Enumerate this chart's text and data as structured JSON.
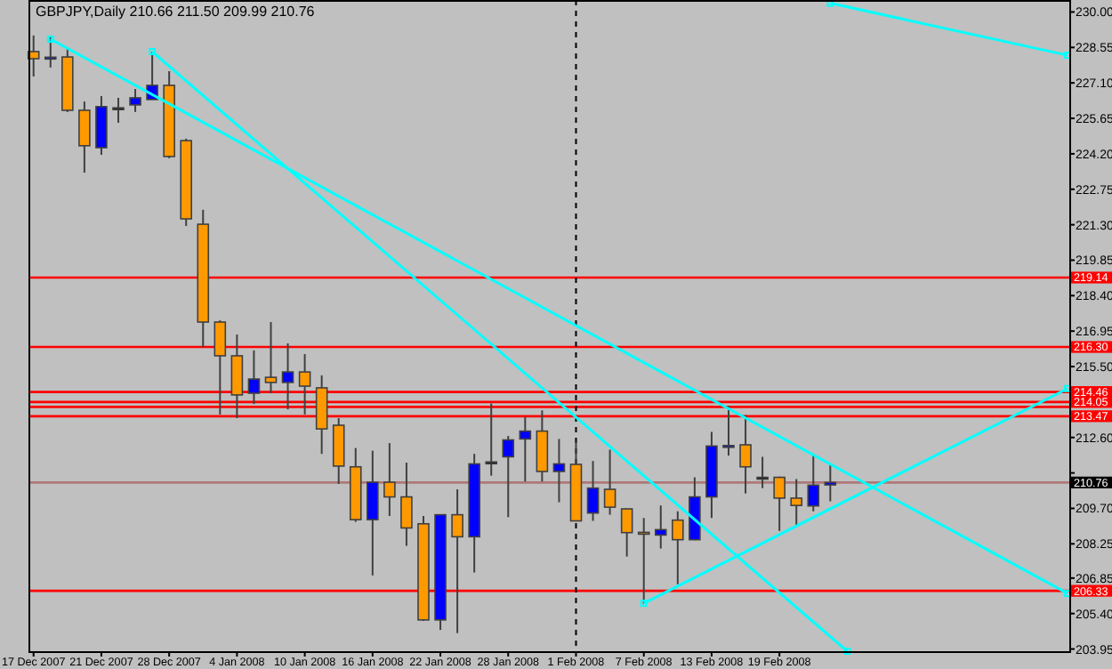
{
  "chart_data": {
    "type": "candlestick",
    "title": "GBPJPY,Daily  210.66 211.50 209.99 210.76",
    "categories": [
      "17 Dec 2007",
      null,
      null,
      null,
      "21 Dec 2007",
      null,
      null,
      null,
      "28 Dec 2007",
      null,
      null,
      null,
      "4 Jan 2008",
      null,
      null,
      null,
      "10 Jan 2008",
      null,
      null,
      null,
      "16 Jan 2008",
      null,
      null,
      null,
      "22 Jan 2008",
      null,
      null,
      null,
      "28 Jan 2008",
      null,
      null,
      null,
      "1 Feb 2008",
      null,
      null,
      null,
      "7 Feb 2008",
      null,
      null,
      null,
      "13 Feb 2008",
      null,
      null,
      null,
      "19 Feb 2008",
      null,
      null,
      null,
      null,
      null,
      null,
      null,
      null,
      null,
      null,
      null,
      null,
      null,
      null,
      null,
      null,
      null
    ],
    "ohlc": [
      [
        228.38,
        229.04,
        227.36,
        228.09
      ],
      [
        228.12,
        228.96,
        227.73,
        228.15
      ],
      [
        228.16,
        228.53,
        225.91,
        225.98
      ],
      [
        225.98,
        226.34,
        223.43,
        224.53
      ],
      [
        224.45,
        226.56,
        224.16,
        226.13
      ],
      [
        226.05,
        226.49,
        225.47,
        226.08
      ],
      [
        226.2,
        226.85,
        225.91,
        226.49
      ],
      [
        226.42,
        228.38,
        226.42,
        227.0
      ],
      [
        227.0,
        227.58,
        224.02,
        224.09
      ],
      [
        224.74,
        224.82,
        221.25,
        221.54
      ],
      [
        221.32,
        221.91,
        216.3,
        217.32
      ],
      [
        217.32,
        217.39,
        213.54,
        215.94
      ],
      [
        215.94,
        216.81,
        213.39,
        214.34
      ],
      [
        214.41,
        216.16,
        213.97,
        214.99
      ],
      [
        215.06,
        217.32,
        214.41,
        214.85
      ],
      [
        214.85,
        216.45,
        213.75,
        215.28
      ],
      [
        215.28,
        216.01,
        213.54,
        214.7
      ],
      [
        214.63,
        215.14,
        211.93,
        212.95
      ],
      [
        213.1,
        213.39,
        210.7,
        211.43
      ],
      [
        211.4,
        212.17,
        209.15,
        209.24
      ],
      [
        209.24,
        212.06,
        206.96,
        210.77
      ],
      [
        210.77,
        212.37,
        209.39,
        210.17
      ],
      [
        210.17,
        211.57,
        208.17,
        208.9
      ],
      [
        209.07,
        209.39,
        205.1,
        205.14
      ],
      [
        205.14,
        209.46,
        204.73,
        209.44
      ],
      [
        209.44,
        210.48,
        204.6,
        208.54
      ],
      [
        208.54,
        211.93,
        207.08,
        211.52
      ],
      [
        211.55,
        213.99,
        211.04,
        211.6
      ],
      [
        211.81,
        212.66,
        209.34,
        212.5
      ],
      [
        212.54,
        213.44,
        210.8,
        212.86
      ],
      [
        212.86,
        213.71,
        210.8,
        211.21
      ],
      [
        211.21,
        212.54,
        209.95,
        211.52
      ],
      [
        211.5,
        212.42,
        209.19,
        209.19
      ],
      [
        209.51,
        211.64,
        209.19,
        210.53
      ],
      [
        210.48,
        212.1,
        209.44,
        209.75
      ],
      [
        209.68,
        209.7,
        207.73,
        208.71
      ],
      [
        208.72,
        209.31,
        205.8,
        208.7
      ],
      [
        208.61,
        209.82,
        208.06,
        208.83
      ],
      [
        209.22,
        209.58,
        206.6,
        208.42
      ],
      [
        208.42,
        210.97,
        208.4,
        210.17
      ],
      [
        210.17,
        212.83,
        209.31,
        212.25
      ],
      [
        212.22,
        213.88,
        211.86,
        212.27
      ],
      [
        212.3,
        213.51,
        210.31,
        211.4
      ],
      [
        210.97,
        211.81,
        210.53,
        210.95
      ],
      [
        210.97,
        211.0,
        208.78,
        210.12
      ],
      [
        210.12,
        210.9,
        209.02,
        209.82
      ],
      [
        209.8,
        211.93,
        209.58,
        210.65
      ],
      [
        210.66,
        211.5,
        209.99,
        210.76
      ],
      null,
      null,
      null,
      null,
      null,
      null,
      null,
      null,
      null,
      null,
      null,
      null,
      null,
      null
    ],
    "colors": [
      "#ff9900",
      "#0000ff",
      "#ff9900",
      "#ff9900",
      "#0000ff",
      "#000000",
      "#0000ff",
      "#0000ff",
      "#ff9900",
      "#ff9900",
      "#ff9900",
      "#ff9900",
      "#ff9900",
      "#0000ff",
      "#ff9900",
      "#0000ff",
      "#ff9900",
      "#ff9900",
      "#ff9900",
      "#ff9900",
      "#0000ff",
      "#ff9900",
      "#ff9900",
      "#ff9900",
      "#0000ff",
      "#ff9900",
      "#0000ff",
      "#000000",
      "#0000ff",
      "#0000ff",
      "#ff9900",
      "#0000ff",
      "#ff9900",
      "#0000ff",
      "#ff9900",
      "#ff9900",
      "#ff9900",
      "#0000ff",
      "#ff9900",
      "#0000ff",
      "#0000ff",
      "#0000ff",
      "#ff9900",
      "#000000",
      "#ff9900",
      "#ff9900",
      "#0000ff",
      "#0000ff",
      null,
      null,
      null,
      null,
      null,
      null,
      null,
      null,
      null,
      null,
      null,
      null,
      null,
      null
    ],
    "series": [
      {
        "type": "line",
        "color": "#00ffff",
        "values": [
          null,
          228.89,
          null,
          null,
          null,
          null,
          null,
          null,
          null,
          null,
          null,
          null,
          null,
          null,
          null,
          null,
          null,
          null,
          null,
          null,
          null,
          null,
          null,
          null,
          null,
          null,
          null,
          null,
          null,
          null,
          null,
          null,
          null,
          null,
          null,
          null,
          null,
          null,
          null,
          null,
          null,
          null,
          null,
          null,
          null,
          null,
          null,
          null,
          null,
          null,
          null,
          null,
          null,
          null,
          null,
          null,
          null,
          null,
          null,
          null,
          null,
          206.22
        ]
      },
      {
        "type": "line",
        "color": "#00ffff",
        "values": [
          null,
          null,
          null,
          null,
          null,
          null,
          null,
          228.38,
          null,
          null,
          null,
          null,
          null,
          null,
          null,
          null,
          null,
          null,
          null,
          null,
          null,
          null,
          null,
          null,
          null,
          null,
          null,
          null,
          null,
          null,
          null,
          null,
          null,
          null,
          null,
          null,
          null,
          null,
          null,
          null,
          null,
          null,
          null,
          null,
          null,
          null,
          null,
          null,
          203.86,
          null,
          null,
          null,
          null,
          null,
          null,
          null,
          null,
          null,
          null,
          null,
          null,
          null
        ]
      },
      {
        "type": "line",
        "color": "#00ffff",
        "values": [
          null,
          null,
          null,
          null,
          null,
          null,
          null,
          null,
          null,
          null,
          null,
          null,
          null,
          null,
          null,
          null,
          null,
          null,
          null,
          null,
          null,
          null,
          null,
          null,
          null,
          null,
          null,
          null,
          null,
          null,
          null,
          null,
          null,
          null,
          null,
          null,
          205.82,
          null,
          null,
          null,
          null,
          null,
          null,
          null,
          null,
          null,
          null,
          null,
          null,
          null,
          null,
          null,
          null,
          null,
          null,
          null,
          null,
          null,
          null,
          null,
          null,
          214.6
        ]
      },
      {
        "type": "line",
        "color": "#00ffff",
        "values": [
          null,
          null,
          null,
          null,
          null,
          null,
          null,
          null,
          null,
          null,
          null,
          null,
          null,
          null,
          null,
          null,
          null,
          null,
          null,
          null,
          null,
          null,
          null,
          null,
          null,
          null,
          null,
          null,
          null,
          null,
          null,
          null,
          null,
          null,
          null,
          null,
          null,
          null,
          null,
          null,
          null,
          null,
          null,
          null,
          null,
          null,
          null,
          230.36,
          null,
          null,
          null,
          null,
          null,
          null,
          null,
          null,
          null,
          null,
          null,
          null,
          null,
          228.23
        ]
      }
    ],
    "marker": "square",
    "ylim": [
      203.86,
      230.49
    ],
    "yticks": [
      {
        "value": 230.0,
        "label": "230.00"
      },
      {
        "value": 228.55,
        "label": "228.55"
      },
      {
        "value": 227.1,
        "label": "227.10"
      },
      {
        "value": 225.65,
        "label": "225.65"
      },
      {
        "value": 224.2,
        "label": "224.20"
      },
      {
        "value": 222.75,
        "label": "222.75"
      },
      {
        "value": 221.3,
        "label": "221.30"
      },
      {
        "value": 219.85,
        "label": "219.85"
      },
      {
        "value": 218.4,
        "label": "218.40"
      },
      {
        "value": 216.95,
        "label": "216.95"
      },
      {
        "value": 215.5,
        "label": "215.50"
      },
      {
        "value": 214.05,
        "label": null
      },
      {
        "value": 212.6,
        "label": "212.60"
      },
      {
        "value": 211.15,
        "label": null
      },
      {
        "value": 209.7,
        "label": "209.70"
      },
      {
        "value": 208.25,
        "label": "208.25"
      },
      {
        "value": 206.85,
        "label": "206.85"
      },
      {
        "value": 205.4,
        "label": "205.40"
      },
      {
        "value": 203.95,
        "label": "203.95"
      }
    ],
    "ref_lines": [
      {
        "axis": "y",
        "value": 219.14,
        "label": "219.14",
        "color": "#ff0000"
      },
      {
        "axis": "y",
        "value": 216.3,
        "label": "216.30",
        "color": "#ff0000"
      },
      {
        "axis": "y",
        "value": 214.46,
        "label": "214.46",
        "color": "#ff0000"
      },
      {
        "axis": "y",
        "value": 214.05,
        "label": "214.05",
        "color": "#ff0000"
      },
      {
        "axis": "y",
        "value": 213.85,
        "color": "#ff0000"
      },
      {
        "axis": "y",
        "value": 213.47,
        "label": "213.47",
        "color": "#ff0000"
      },
      {
        "axis": "y",
        "value": 206.33,
        "label": "206.33",
        "color": "#ff0000"
      },
      {
        "axis": "y",
        "value": 210.76,
        "label": "210.76",
        "color": "#b07878"
      },
      {
        "axis": "x",
        "value": "1 Feb 2008",
        "color": "#000000",
        "line_style": "dashed"
      }
    ]
  }
}
